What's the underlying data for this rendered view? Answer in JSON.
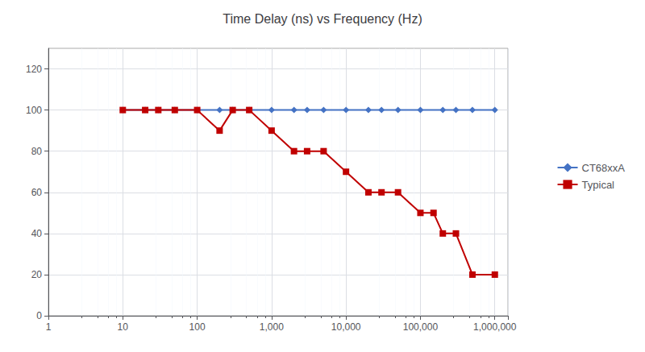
{
  "chart_data": {
    "type": "line",
    "title": "Time Delay (ns) vs Frequency (Hz)",
    "log": "x",
    "grid": true,
    "legend": "right",
    "xlim": [
      1,
      1500000
    ],
    "xticks": [
      1,
      10,
      100,
      {
        "value": 1000,
        "label": "1,000"
      },
      {
        "value": 10000,
        "label": "10,000"
      },
      {
        "value": 100000,
        "label": "100,000"
      },
      {
        "value": 1000000,
        "label": "1,000,000"
      }
    ],
    "ylim": [
      0,
      130
    ],
    "yticks": [
      0,
      20,
      40,
      60,
      80,
      100,
      120
    ],
    "series": [
      {
        "name": "CT68xxA",
        "color": "#4472C4",
        "marker": "diamond",
        "x": [
          10,
          20,
          30,
          50,
          100,
          200,
          300,
          500,
          1000,
          2000,
          3000,
          5000,
          10000,
          20000,
          30000,
          50000,
          100000,
          200000,
          300000,
          500000,
          1000000
        ],
        "values": [
          100,
          100,
          100,
          100,
          100,
          100,
          100,
          100,
          100,
          100,
          100,
          100,
          100,
          100,
          100,
          100,
          100,
          100,
          100,
          100,
          100
        ]
      },
      {
        "name": "Typical",
        "color": "#C00000",
        "marker": "square",
        "x": [
          10,
          20,
          30,
          50,
          100,
          200,
          300,
          500,
          1000,
          2000,
          3000,
          5000,
          10000,
          20000,
          30000,
          50000,
          100000,
          150000,
          200000,
          300000,
          500000,
          1000000
        ],
        "values": [
          100,
          100,
          100,
          100,
          100,
          90,
          100,
          100,
          90,
          80,
          80,
          80,
          70,
          60,
          60,
          60,
          50,
          50,
          40,
          40,
          20,
          20
        ]
      }
    ]
  }
}
